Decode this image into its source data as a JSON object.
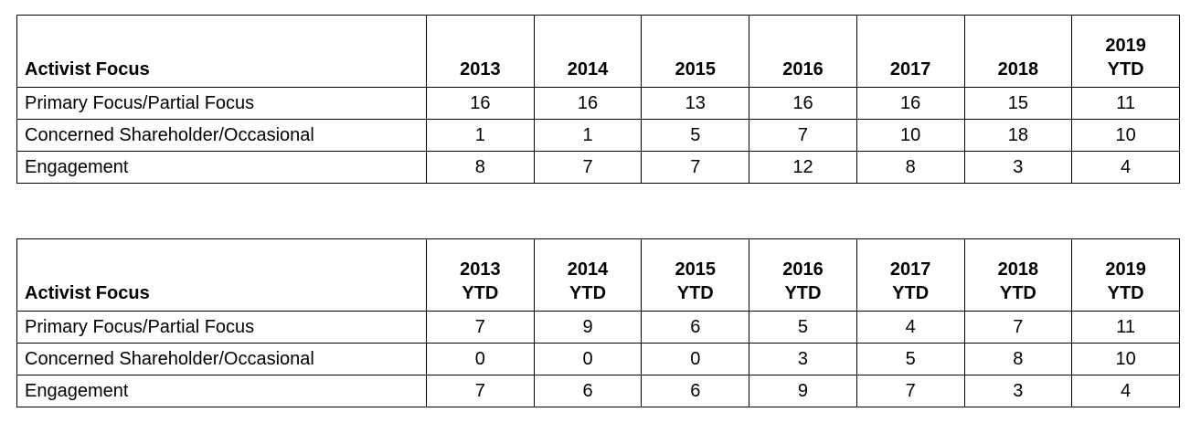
{
  "tables": [
    {
      "header": [
        "Activist Focus",
        "2013",
        "2014",
        "2015",
        "2016",
        "2017",
        "2018",
        "2019\nYTD"
      ],
      "rows": [
        [
          "Primary Focus/Partial Focus",
          16,
          16,
          13,
          16,
          16,
          15,
          11
        ],
        [
          "Concerned Shareholder/Occasional",
          1,
          1,
          5,
          7,
          10,
          18,
          10
        ],
        [
          "Engagement",
          8,
          7,
          7,
          12,
          8,
          3,
          4
        ]
      ]
    },
    {
      "header": [
        "Activist Focus",
        "2013\nYTD",
        "2014\nYTD",
        "2015\nYTD",
        "2016\nYTD",
        "2017\nYTD",
        "2018\nYTD",
        "2019\nYTD"
      ],
      "rows": [
        [
          "Primary Focus/Partial Focus",
          7,
          9,
          6,
          5,
          4,
          7,
          11
        ],
        [
          "Concerned Shareholder/Occasional",
          0,
          0,
          0,
          3,
          5,
          8,
          10
        ],
        [
          "Engagement",
          7,
          6,
          6,
          9,
          7,
          3,
          4
        ]
      ]
    }
  ]
}
